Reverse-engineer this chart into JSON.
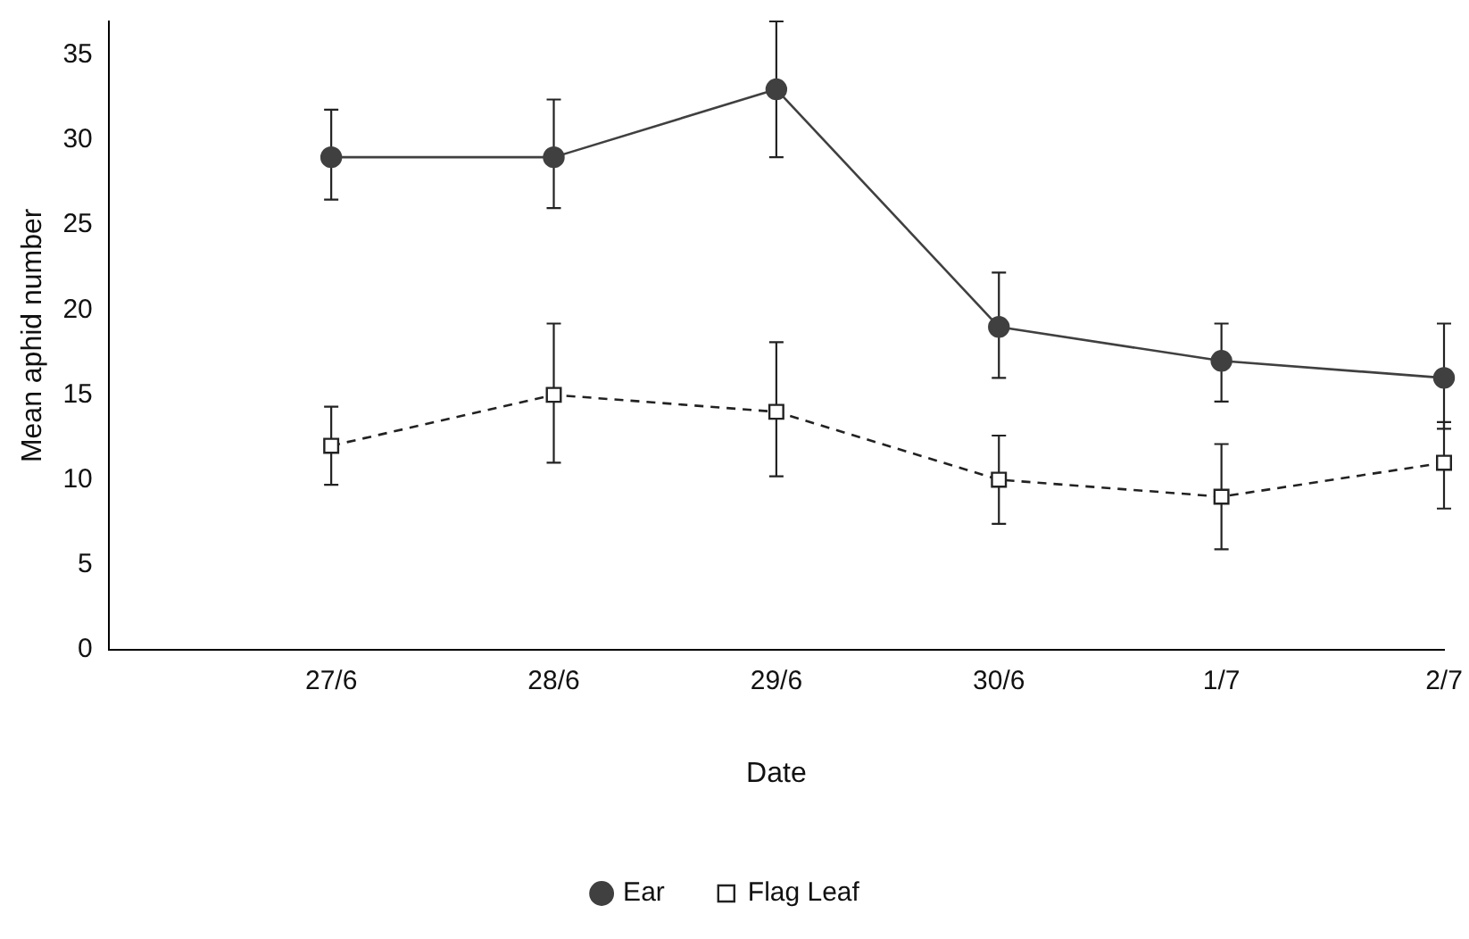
{
  "chart_data": {
    "type": "line",
    "xlabel": "Date",
    "ylabel": "Mean aphid number",
    "categories": [
      null,
      "27/6",
      "28/6",
      "29/6",
      "30/6",
      "1/7",
      "2/7"
    ],
    "ylim": [
      0,
      37
    ],
    "yticks": [
      0,
      5,
      10,
      15,
      20,
      25,
      30,
      35
    ],
    "grid": false,
    "legend": "bottom",
    "series": [
      {
        "name": "Ear",
        "color": "#404040",
        "marker": "circle",
        "line_style": "solid",
        "values": [
          null,
          29,
          29,
          33,
          19,
          17,
          16
        ],
        "errors": [
          null,
          [
            26.5,
            31.8
          ],
          [
            26,
            32.4
          ],
          [
            29,
            37
          ],
          [
            16,
            22.2
          ],
          [
            14.6,
            19.2
          ],
          [
            13,
            19.2
          ]
        ]
      },
      {
        "name": "Flag Leaf",
        "color": "#222222",
        "marker": "square",
        "line_style": "dashed",
        "values": [
          null,
          12,
          15,
          14,
          10,
          9,
          11
        ],
        "errors": [
          null,
          [
            9.7,
            14.3
          ],
          [
            11,
            19.2
          ],
          [
            10.2,
            18.1
          ],
          [
            7.4,
            12.6
          ],
          [
            5.9,
            12.1
          ],
          [
            8.3,
            13.4
          ]
        ]
      }
    ]
  }
}
